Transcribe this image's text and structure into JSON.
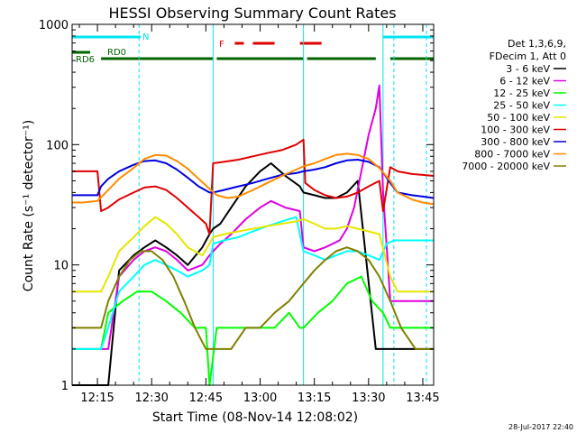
{
  "chart_data": {
    "type": "line",
    "title": "HESSI Observing Summary Count Rates",
    "xlabel": "Start Time (08-Nov-14 12:08:02)",
    "ylabel": "Count Rate (s⁻¹ detector⁻¹)",
    "x_unit": "minutes since 12:08:02",
    "xlim": [
      0,
      100
    ],
    "ylim": [
      1,
      1000
    ],
    "yscale": "log",
    "xticks": [
      {
        "value": 7,
        "label": "12:15"
      },
      {
        "value": 22,
        "label": "12:30"
      },
      {
        "value": 37,
        "label": "12:45"
      },
      {
        "value": 52,
        "label": "13:00"
      },
      {
        "value": 67,
        "label": "13:15"
      },
      {
        "value": 82,
        "label": "13:30"
      },
      {
        "value": 97,
        "label": "13:45"
      }
    ],
    "yticks": [
      {
        "value": 1,
        "label": "1"
      },
      {
        "value": 10,
        "label": "10"
      },
      {
        "value": 100,
        "label": "100"
      },
      {
        "value": 1000,
        "label": "1000"
      }
    ],
    "legend_header": [
      "Det 1,3,6,9,",
      "FDecim 1, Att 0"
    ],
    "legend_placement": "right",
    "timestamp": "28-Jul-2017 22:40",
    "flags": [
      {
        "label": "N",
        "color": "#00e5ee",
        "segments": [
          [
            0,
            19
          ],
          [
            86,
            100
          ]
        ]
      },
      {
        "label": "F",
        "color": "#e00000",
        "segments": [
          [
            45,
            47.5
          ],
          [
            50,
            56
          ],
          [
            63,
            69
          ]
        ]
      },
      {
        "label": "RD0",
        "color": "#006400",
        "segments": [
          [
            0,
            5
          ]
        ]
      },
      {
        "label": "RD6",
        "color": "#006400",
        "segments": [
          [
            8,
            39
          ],
          [
            40,
            64
          ],
          [
            65,
            84
          ],
          [
            88,
            100
          ]
        ]
      }
    ],
    "vlines": [
      {
        "x": 0,
        "color": "#00e5ee",
        "dash": false
      },
      {
        "x": 18.5,
        "color": "#00e5ee",
        "dash": true
      },
      {
        "x": 39,
        "color": "#00e5ee",
        "dash": false
      },
      {
        "x": 64,
        "color": "#00e5ee",
        "dash": false
      },
      {
        "x": 86,
        "color": "#00e5ee",
        "dash": false
      },
      {
        "x": 89,
        "color": "#00e5ee",
        "dash": true
      },
      {
        "x": 98,
        "color": "#00e5ee",
        "dash": true
      }
    ],
    "series": [
      {
        "name": "3 - 6 keV",
        "color": "#000000",
        "x": [
          0,
          3,
          8,
          10,
          13,
          17,
          20,
          23,
          26,
          29,
          32,
          36,
          38,
          39,
          41,
          44,
          48,
          52,
          55,
          59,
          63,
          64,
          67,
          70,
          73,
          76,
          79,
          84,
          86,
          88,
          90,
          92,
          95,
          100
        ],
        "y": [
          1,
          1,
          1,
          1,
          9,
          12,
          14,
          16,
          14,
          12,
          10,
          14,
          18,
          20,
          22,
          30,
          45,
          60,
          70,
          55,
          45,
          40,
          38,
          36,
          36,
          40,
          50,
          2,
          2,
          2,
          2,
          2,
          2,
          2
        ]
      },
      {
        "name": "6 - 12 keV",
        "color": "#e000e0",
        "x": [
          0,
          8,
          10,
          13,
          17,
          20,
          23,
          26,
          29,
          32,
          36,
          38,
          39,
          41,
          44,
          48,
          52,
          55,
          59,
          63,
          64,
          67,
          70,
          74,
          76,
          78,
          80,
          82,
          84,
          85,
          86,
          88,
          90,
          95,
          100
        ],
        "y": [
          2,
          2,
          2,
          8,
          11,
          13,
          14,
          13,
          11,
          9,
          10,
          12,
          13,
          15,
          18,
          24,
          30,
          34,
          30,
          28,
          14,
          13,
          14,
          16,
          20,
          30,
          60,
          120,
          200,
          310,
          40,
          5,
          5,
          5,
          5
        ]
      },
      {
        "name": "12 - 25 keV",
        "color": "#00ff00",
        "x": [
          0,
          2,
          8,
          10,
          14,
          18,
          22,
          26,
          30,
          34,
          37,
          38,
          40,
          44,
          48,
          52,
          56,
          60,
          63,
          64,
          68,
          72,
          76,
          80,
          83,
          86,
          88,
          90,
          95,
          100
        ],
        "y": [
          2,
          2,
          2,
          4,
          5,
          6,
          6,
          5,
          4,
          3,
          3,
          1,
          3,
          3,
          3,
          3,
          3,
          4,
          3,
          3,
          4,
          5,
          7,
          8,
          5,
          4,
          3,
          3,
          3,
          3
        ]
      },
      {
        "name": "25 - 50 keV",
        "color": "#00ffff",
        "x": [
          0,
          8,
          10,
          13,
          17,
          20,
          23,
          26,
          29,
          32,
          36,
          38,
          39,
          42,
          46,
          50,
          54,
          58,
          62,
          64,
          67,
          70,
          73,
          76,
          79,
          82,
          85,
          87,
          89,
          92,
          96,
          100
        ],
        "y": [
          2,
          2,
          3,
          6,
          8,
          10,
          11,
          10,
          9,
          8,
          9,
          10,
          15,
          16,
          17,
          19,
          21,
          23,
          25,
          13,
          12,
          11,
          12,
          13,
          13,
          12,
          11,
          15,
          16,
          16,
          16,
          16
        ]
      },
      {
        "name": "50 - 100 keV",
        "color": "#e6e600",
        "x": [
          0,
          8,
          10,
          13,
          17,
          20,
          23,
          26,
          29,
          32,
          36,
          38,
          39,
          42,
          46,
          50,
          54,
          58,
          62,
          64,
          67,
          70,
          73,
          76,
          79,
          82,
          85,
          88,
          90,
          93,
          96,
          100
        ],
        "y": [
          6,
          6,
          8,
          13,
          17,
          21,
          25,
          22,
          18,
          14,
          12,
          15,
          17,
          18,
          19,
          20,
          21,
          22,
          23,
          24,
          22,
          20,
          20,
          21,
          20,
          19,
          18,
          8,
          6,
          6,
          6,
          6
        ]
      },
      {
        "name": "100 - 300 keV",
        "color": "#e00000",
        "x": [
          0,
          4,
          7,
          8,
          10,
          13,
          17,
          20,
          23,
          26,
          29,
          32,
          35,
          37,
          38,
          39,
          42,
          46,
          50,
          54,
          58,
          62,
          64,
          64.5,
          67,
          70,
          73,
          76,
          79,
          82,
          85,
          86,
          88,
          90,
          94,
          97,
          100
        ],
        "y": [
          60,
          60,
          60,
          28,
          30,
          35,
          40,
          44,
          45,
          42,
          36,
          30,
          25,
          22,
          18,
          70,
          72,
          75,
          80,
          85,
          90,
          100,
          110,
          48,
          42,
          38,
          36,
          37,
          40,
          45,
          50,
          28,
          65,
          60,
          57,
          56,
          55
        ]
      },
      {
        "name": "300 - 800 keV",
        "color": "#0000e0",
        "x": [
          0,
          4,
          7,
          8,
          10,
          13,
          17,
          20,
          23,
          26,
          29,
          32,
          35,
          38,
          39,
          42,
          46,
          50,
          54,
          58,
          62,
          64,
          67,
          70,
          73,
          76,
          79,
          82,
          85,
          88,
          90,
          94,
          97,
          100
        ],
        "y": [
          38,
          38,
          38,
          45,
          52,
          60,
          68,
          73,
          74,
          70,
          62,
          53,
          45,
          40,
          40,
          42,
          45,
          48,
          52,
          56,
          58,
          60,
          62,
          65,
          70,
          74,
          75,
          72,
          65,
          48,
          40,
          38,
          37,
          36
        ]
      },
      {
        "name": "800 - 7000 keV",
        "color": "#ff8c00",
        "x": [
          0,
          3,
          7,
          10,
          13,
          17,
          20,
          23,
          26,
          29,
          32,
          35,
          38,
          40,
          43,
          46,
          50,
          54,
          58,
          62,
          64,
          67,
          70,
          73,
          76,
          79,
          82,
          85,
          88,
          90,
          94,
          97,
          100
        ],
        "y": [
          33,
          33,
          34,
          42,
          52,
          64,
          76,
          82,
          81,
          73,
          63,
          52,
          43,
          38,
          36,
          37,
          42,
          48,
          55,
          62,
          66,
          70,
          76,
          82,
          84,
          82,
          76,
          64,
          50,
          40,
          35,
          33,
          32
        ]
      },
      {
        "name": "7000 - 20000 keV",
        "color": "#808000",
        "x": [
          0,
          5,
          8,
          10,
          13,
          16,
          19,
          22,
          25,
          28,
          31,
          34,
          37,
          40,
          44,
          48,
          52,
          56,
          60,
          64,
          67,
          70,
          73,
          76,
          79,
          82,
          85,
          88,
          91,
          95,
          100
        ],
        "y": [
          3,
          3,
          3,
          5,
          8,
          11,
          13,
          13,
          11,
          8,
          5,
          3,
          2,
          2,
          2,
          3,
          3,
          4,
          5,
          7,
          9,
          11,
          13,
          14,
          13,
          11,
          8,
          5,
          3,
          2,
          2
        ]
      }
    ]
  }
}
